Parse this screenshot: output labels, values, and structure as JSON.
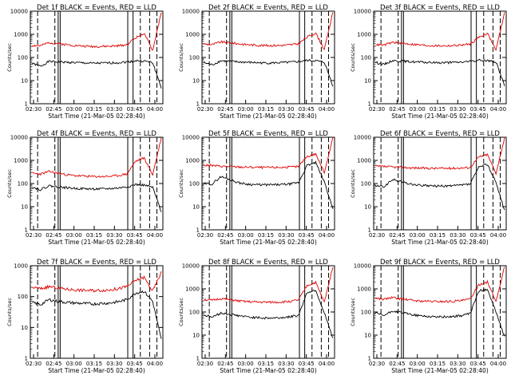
{
  "chart_data": [
    {
      "type": "line",
      "title": "Det 1f BLACK = Events, RED = LLD",
      "xlabel": "Start Time (21-Mar-05 02:28:40)",
      "ylabel": "Counts/sec",
      "yscale": "log",
      "ylim": [
        1,
        10000
      ],
      "ytick_labels": [
        "1",
        "10",
        "100",
        "1000",
        "10000"
      ],
      "xtick_labels": [
        "02:30",
        "02:45",
        "03:00",
        "03:15",
        "03:30",
        "03:45",
        "04:00"
      ],
      "series": [
        {
          "name": "Events",
          "color": "#000000",
          "values": [
            55,
            42,
            68,
            64,
            62,
            60,
            58,
            56,
            57,
            58,
            60,
            64,
            72,
            70,
            60,
            5
          ]
        },
        {
          "name": "LLD",
          "color": "#e00000",
          "values": [
            330,
            320,
            440,
            400,
            360,
            330,
            310,
            300,
            300,
            305,
            320,
            360,
            700,
            1100,
            200,
            9000
          ]
        }
      ]
    },
    {
      "type": "line",
      "title": "Det 2f BLACK = Events, RED = LLD",
      "xlabel": "Start Time (21-Mar-05 02:28:40)",
      "ylabel": "Counts/sec",
      "yscale": "log",
      "ylim": [
        1,
        10000
      ],
      "ytick_labels": [
        "1",
        "10",
        "100",
        "1000",
        "10000"
      ],
      "xtick_labels": [
        "02:30",
        "02:45",
        "03:00",
        "03:15",
        "03:30",
        "03:45",
        "04:00"
      ],
      "series": [
        {
          "name": "Events",
          "color": "#000000",
          "values": [
            60,
            48,
            72,
            68,
            64,
            62,
            60,
            58,
            58,
            60,
            62,
            66,
            75,
            72,
            62,
            6
          ]
        },
        {
          "name": "LLD",
          "color": "#e00000",
          "values": [
            380,
            360,
            470,
            430,
            390,
            360,
            340,
            330,
            330,
            335,
            350,
            390,
            760,
            1150,
            220,
            9200
          ]
        }
      ]
    },
    {
      "type": "line",
      "title": "Det 3f BLACK = Events, RED = LLD",
      "xlabel": "Start Time (21-Mar-05 02:28:40)",
      "ylabel": "Counts/sec",
      "yscale": "log",
      "ylim": [
        1,
        10000
      ],
      "ytick_labels": [
        "1",
        "10",
        "100",
        "1000",
        "10000"
      ],
      "xtick_labels": [
        "02:30",
        "02:45",
        "03:00",
        "03:15",
        "03:30",
        "03:45",
        "04:00"
      ],
      "series": [
        {
          "name": "Events",
          "color": "#000000",
          "values": [
            62,
            50,
            74,
            70,
            66,
            63,
            61,
            60,
            60,
            61,
            63,
            67,
            76,
            74,
            64,
            6
          ]
        },
        {
          "name": "LLD",
          "color": "#e00000",
          "values": [
            360,
            340,
            450,
            420,
            380,
            350,
            330,
            320,
            320,
            325,
            345,
            380,
            740,
            1120,
            210,
            9100
          ]
        }
      ]
    },
    {
      "type": "line",
      "title": "Det 4f BLACK = Events, RED = LLD",
      "xlabel": "Start Time (21-Mar-05 02:28:40)",
      "ylabel": "Counts/sec",
      "yscale": "log",
      "ylim": [
        1,
        10000
      ],
      "ytick_labels": [
        "1",
        "10",
        "100",
        "1000",
        "10000"
      ],
      "xtick_labels": [
        "02:30",
        "02:45",
        "03:00",
        "03:15",
        "03:30",
        "03:45",
        "04:00"
      ],
      "series": [
        {
          "name": "Events",
          "color": "#000000",
          "values": [
            70,
            55,
            80,
            72,
            66,
            62,
            60,
            58,
            58,
            60,
            64,
            72,
            90,
            85,
            68,
            6
          ]
        },
        {
          "name": "LLD",
          "color": "#e00000",
          "values": [
            280,
            260,
            330,
            280,
            240,
            220,
            210,
            200,
            200,
            205,
            220,
            260,
            900,
            1300,
            240,
            9500
          ]
        }
      ]
    },
    {
      "type": "line",
      "title": "Det 5f BLACK = Events, RED = LLD",
      "xlabel": "Start Time (21-Mar-05 02:28:40)",
      "ylabel": "Counts/sec",
      "yscale": "log",
      "ylim": [
        1,
        10000
      ],
      "ytick_labels": [
        "1",
        "10",
        "100",
        "1000",
        "10000"
      ],
      "xtick_labels": [
        "02:30",
        "02:45",
        "03:00",
        "03:15",
        "03:30",
        "03:45",
        "04:00"
      ],
      "series": [
        {
          "name": "Events",
          "color": "#000000",
          "values": [
            100,
            95,
            200,
            150,
            110,
            95,
            90,
            88,
            88,
            90,
            95,
            110,
            600,
            800,
            120,
            8
          ]
        },
        {
          "name": "LLD",
          "color": "#e00000",
          "values": [
            620,
            600,
            560,
            540,
            520,
            510,
            500,
            495,
            495,
            500,
            510,
            540,
            1500,
            1900,
            300,
            9800
          ]
        }
      ]
    },
    {
      "type": "line",
      "title": "Det 6f BLACK = Events, RED = LLD",
      "xlabel": "Start Time (21-Mar-05 02:28:40)",
      "ylabel": "Counts/sec",
      "yscale": "log",
      "ylim": [
        1,
        10000
      ],
      "ytick_labels": [
        "1",
        "10",
        "100",
        "1000",
        "10000"
      ],
      "xtick_labels": [
        "02:30",
        "02:45",
        "03:00",
        "03:15",
        "03:30",
        "03:45",
        "04:00"
      ],
      "series": [
        {
          "name": "Events",
          "color": "#000000",
          "values": [
            80,
            72,
            150,
            120,
            95,
            85,
            80,
            78,
            78,
            80,
            85,
            95,
            500,
            700,
            110,
            7
          ]
        },
        {
          "name": "LLD",
          "color": "#e00000",
          "values": [
            560,
            540,
            520,
            500,
            480,
            470,
            460,
            455,
            455,
            460,
            470,
            500,
            1400,
            1800,
            280,
            9600
          ]
        }
      ]
    },
    {
      "type": "line",
      "title": "Det 7f BLACK = Events, RED = LLD",
      "xlabel": "Start Time (21-Mar-05 02:28:40)",
      "ylabel": "Counts/sec",
      "yscale": "log",
      "ylim": [
        1,
        1000
      ],
      "ytick_labels": [
        "1",
        "10",
        "100",
        "1000"
      ],
      "xtick_labels": [
        "02:30",
        "02:45",
        "03:00",
        "03:15",
        "03:30",
        "03:45",
        "04:00"
      ],
      "series": [
        {
          "name": "Events",
          "color": "#000000",
          "values": [
            65,
            55,
            80,
            70,
            65,
            62,
            60,
            58,
            60,
            62,
            68,
            80,
            130,
            150,
            70,
            4
          ]
        },
        {
          "name": "LLD",
          "color": "#e00000",
          "values": [
            200,
            180,
            210,
            190,
            175,
            165,
            160,
            158,
            160,
            165,
            180,
            210,
            330,
            420,
            150,
            600
          ]
        }
      ]
    },
    {
      "type": "line",
      "title": "Det 8f BLACK = Events, RED = LLD",
      "xlabel": "Start Time (21-Mar-05 02:28:40)",
      "ylabel": "Counts/sec",
      "yscale": "log",
      "ylim": [
        1,
        10000
      ],
      "ytick_labels": [
        "1",
        "10",
        "100",
        "1000",
        "10000"
      ],
      "xtick_labels": [
        "02:30",
        "02:45",
        "03:00",
        "03:15",
        "03:30",
        "03:45",
        "04:00"
      ],
      "series": [
        {
          "name": "Events",
          "color": "#000000",
          "values": [
            75,
            60,
            90,
            80,
            70,
            62,
            58,
            55,
            55,
            57,
            62,
            72,
            700,
            900,
            90,
            7
          ]
        },
        {
          "name": "LLD",
          "color": "#e00000",
          "values": [
            350,
            320,
            380,
            340,
            300,
            280,
            270,
            265,
            265,
            270,
            285,
            330,
            1400,
            1900,
            260,
            9400
          ]
        }
      ]
    },
    {
      "type": "line",
      "title": "Det 9f BLACK = Events, RED = LLD",
      "xlabel": "Start Time (21-Mar-05 02:28:40)",
      "ylabel": "Counts/sec",
      "yscale": "log",
      "ylim": [
        1,
        10000
      ],
      "ytick_labels": [
        "1",
        "10",
        "100",
        "1000",
        "10000"
      ],
      "xtick_labels": [
        "02:30",
        "02:45",
        "03:00",
        "03:15",
        "03:30",
        "03:45",
        "04:00"
      ],
      "series": [
        {
          "name": "Events",
          "color": "#000000",
          "values": [
            90,
            70,
            110,
            95,
            80,
            70,
            65,
            62,
            62,
            64,
            70,
            85,
            800,
            1000,
            100,
            8
          ]
        },
        {
          "name": "LLD",
          "color": "#e00000",
          "values": [
            400,
            360,
            420,
            370,
            330,
            300,
            290,
            285,
            285,
            290,
            310,
            360,
            1500,
            2000,
            280,
            9600
          ]
        }
      ]
    }
  ]
}
